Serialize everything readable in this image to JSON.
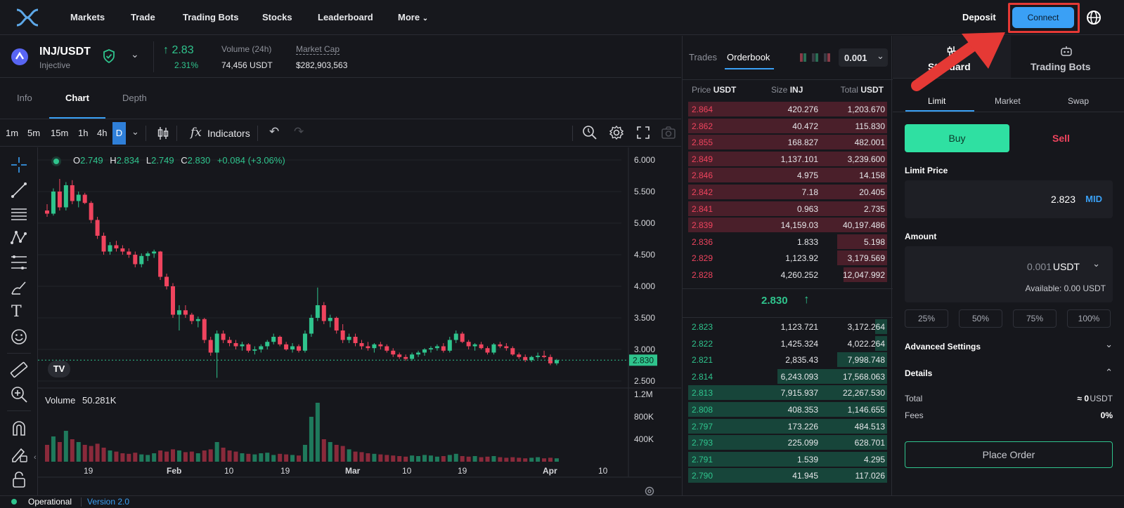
{
  "nav": {
    "items": [
      "Markets",
      "Trade",
      "Trading Bots",
      "Stocks",
      "Leaderboard",
      "More"
    ],
    "deposit": "Deposit",
    "connect": "Connect"
  },
  "pair": {
    "symbol": "INJ/USDT",
    "name": "Injective",
    "price": "↑ 2.83",
    "change": "2.31%",
    "volume_label": "Volume (24h)",
    "volume_value": "74,456 USDT",
    "mcap_label": "Market Cap",
    "mcap_value": "$282,903,563"
  },
  "chart_tabs": [
    "Info",
    "Chart",
    "Depth"
  ],
  "toolbar": {
    "intervals": [
      "1m",
      "5m",
      "15m",
      "1h",
      "4h",
      "D"
    ],
    "indicators": "Indicators"
  },
  "ohlc": {
    "o_label": "O",
    "o": "2.749",
    "h_label": "H",
    "h": "2.834",
    "l_label": "L",
    "l": "2.749",
    "c_label": "C",
    "c": "2.830",
    "change": "+0.084 (+3.06%)"
  },
  "volume_label": "Volume",
  "volume_value": "50.281K",
  "price_axis": [
    "6.000",
    "5.500",
    "5.000",
    "4.500",
    "4.000",
    "3.500",
    "3.000",
    "2.500"
  ],
  "current_price_tag": "2.830",
  "volume_axis": [
    "1.2M",
    "800K",
    "400K"
  ],
  "time_axis": [
    "19",
    "Feb",
    "10",
    "19",
    "Mar",
    "10",
    "19",
    "Apr",
    "10"
  ],
  "chart_data": {
    "type": "candlestick",
    "ylim": [
      2.5,
      6.0
    ],
    "candles": [
      [
        5.2,
        5.3,
        5.1,
        5.15
      ],
      [
        5.15,
        5.55,
        5.12,
        5.5
      ],
      [
        5.5,
        5.7,
        5.2,
        5.25
      ],
      [
        5.25,
        5.65,
        5.2,
        5.6
      ],
      [
        5.6,
        5.68,
        5.3,
        5.35
      ],
      [
        5.35,
        5.5,
        5.25,
        5.45
      ],
      [
        5.45,
        5.48,
        5.3,
        5.32
      ],
      [
        5.32,
        5.35,
        5.0,
        5.05
      ],
      [
        5.05,
        5.1,
        4.75,
        4.8
      ],
      [
        4.8,
        4.85,
        4.5,
        4.55
      ],
      [
        4.55,
        4.7,
        4.5,
        4.65
      ],
      [
        4.65,
        4.72,
        4.55,
        4.6
      ],
      [
        4.6,
        4.65,
        4.5,
        4.55
      ],
      [
        4.55,
        4.6,
        4.45,
        4.5
      ],
      [
        4.5,
        4.55,
        4.3,
        4.35
      ],
      [
        4.35,
        4.52,
        4.3,
        4.48
      ],
      [
        4.48,
        4.55,
        4.4,
        4.52
      ],
      [
        4.52,
        4.58,
        4.45,
        4.55
      ],
      [
        4.55,
        4.56,
        4.1,
        4.15
      ],
      [
        4.15,
        4.2,
        3.95,
        4.0
      ],
      [
        4.0,
        4.05,
        3.5,
        3.55
      ],
      [
        3.55,
        3.7,
        3.3,
        3.62
      ],
      [
        3.62,
        3.7,
        3.5,
        3.55
      ],
      [
        3.55,
        3.58,
        3.4,
        3.45
      ],
      [
        3.45,
        3.52,
        3.35,
        3.48
      ],
      [
        3.48,
        3.5,
        3.1,
        3.15
      ],
      [
        3.15,
        3.2,
        2.9,
        2.95
      ],
      [
        2.95,
        3.3,
        2.55,
        3.25
      ],
      [
        3.25,
        3.3,
        3.1,
        3.15
      ],
      [
        3.15,
        3.2,
        3.05,
        3.1
      ],
      [
        3.1,
        3.15,
        3.0,
        3.05
      ],
      [
        3.05,
        3.12,
        2.98,
        3.08
      ],
      [
        3.08,
        3.1,
        2.95,
        2.98
      ],
      [
        2.98,
        3.05,
        2.92,
        3.0
      ],
      [
        3.0,
        3.08,
        2.95,
        3.05
      ],
      [
        3.05,
        3.15,
        3.0,
        3.12
      ],
      [
        3.12,
        3.25,
        3.08,
        3.2
      ],
      [
        3.2,
        3.22,
        3.05,
        3.08
      ],
      [
        3.08,
        3.12,
        2.98,
        3.0
      ],
      [
        3.0,
        3.1,
        2.95,
        3.05
      ],
      [
        3.05,
        3.08,
        2.95,
        2.98
      ],
      [
        2.98,
        3.3,
        2.95,
        3.25
      ],
      [
        3.25,
        3.55,
        3.2,
        3.5
      ],
      [
        3.5,
        3.98,
        3.45,
        3.7
      ],
      [
        3.7,
        3.75,
        3.4,
        3.45
      ],
      [
        3.45,
        3.55,
        3.35,
        3.5
      ],
      [
        3.5,
        3.52,
        3.25,
        3.3
      ],
      [
        3.3,
        3.4,
        3.1,
        3.15
      ],
      [
        3.15,
        3.25,
        3.1,
        3.2
      ],
      [
        3.2,
        3.25,
        3.05,
        3.1
      ],
      [
        3.1,
        3.15,
        3.0,
        3.05
      ],
      [
        3.05,
        3.12,
        2.98,
        3.02
      ],
      [
        3.02,
        3.1,
        2.95,
        3.08
      ],
      [
        3.08,
        3.12,
        3.0,
        3.05
      ],
      [
        3.05,
        3.08,
        2.95,
        2.98
      ],
      [
        2.98,
        3.02,
        2.88,
        2.92
      ],
      [
        2.92,
        2.95,
        2.85,
        2.88
      ],
      [
        2.88,
        2.92,
        2.82,
        2.85
      ],
      [
        2.85,
        2.95,
        2.82,
        2.92
      ],
      [
        2.92,
        2.98,
        2.88,
        2.95
      ],
      [
        2.95,
        3.02,
        2.9,
        3.0
      ],
      [
        3.0,
        3.05,
        2.95,
        3.02
      ],
      [
        3.02,
        3.08,
        2.98,
        3.05
      ],
      [
        3.05,
        3.1,
        2.95,
        2.98
      ],
      [
        2.98,
        3.2,
        2.95,
        3.15
      ],
      [
        3.15,
        3.3,
        3.1,
        3.25
      ],
      [
        3.25,
        3.28,
        3.1,
        3.12
      ],
      [
        3.12,
        3.15,
        3.0,
        3.05
      ],
      [
        3.05,
        3.1,
        2.98,
        3.08
      ],
      [
        3.08,
        3.12,
        3.0,
        3.02
      ],
      [
        3.02,
        3.05,
        2.92,
        2.95
      ],
      [
        2.95,
        3.1,
        2.92,
        3.08
      ],
      [
        3.08,
        3.12,
        3.02,
        3.05
      ],
      [
        3.05,
        3.1,
        2.98,
        3.02
      ],
      [
        3.02,
        3.05,
        2.9,
        2.92
      ],
      [
        2.92,
        2.95,
        2.85,
        2.88
      ],
      [
        2.88,
        2.92,
        2.8,
        2.83
      ],
      [
        2.83,
        2.9,
        2.8,
        2.88
      ],
      [
        2.88,
        2.95,
        2.85,
        2.9
      ],
      [
        2.9,
        2.98,
        2.86,
        2.88
      ],
      [
        2.88,
        2.92,
        2.75,
        2.78
      ],
      [
        2.78,
        2.85,
        2.75,
        2.83
      ]
    ],
    "volumes": [
      0.3,
      0.45,
      0.35,
      0.55,
      0.4,
      0.35,
      0.3,
      0.28,
      0.32,
      0.25,
      0.2,
      0.18,
      0.15,
      0.14,
      0.16,
      0.13,
      0.12,
      0.15,
      0.2,
      0.18,
      0.22,
      0.2,
      0.17,
      0.18,
      0.15,
      0.2,
      0.22,
      0.35,
      0.25,
      0.2,
      0.18,
      0.15,
      0.14,
      0.13,
      0.15,
      0.16,
      0.12,
      0.14,
      0.13,
      0.12,
      0.11,
      0.3,
      0.8,
      1.05,
      0.4,
      0.35,
      0.3,
      0.28,
      0.22,
      0.18,
      0.17,
      0.15,
      0.14,
      0.13,
      0.12,
      0.11,
      0.1,
      0.09,
      0.11,
      0.1,
      0.12,
      0.11,
      0.09,
      0.1,
      0.12,
      0.14,
      0.1,
      0.09,
      0.1,
      0.08,
      0.09,
      0.1,
      0.08,
      0.07,
      0.08,
      0.07,
      0.06,
      0.07,
      0.08,
      0.06,
      0.07,
      0.06
    ]
  },
  "orderbook": {
    "tab_trades": "Trades",
    "tab_orderbook": "Orderbook",
    "precision": "0.001",
    "h_price": "Price",
    "h_price_unit": "USDT",
    "h_size": "Size",
    "h_size_unit": "INJ",
    "h_total": "Total",
    "h_total_unit": "USDT",
    "asks": [
      {
        "price": "2.864",
        "size": "420.276",
        "total": "1,203.670",
        "depth": 1.0
      },
      {
        "price": "2.862",
        "size": "40.472",
        "total": "115.830",
        "depth": 1.0
      },
      {
        "price": "2.855",
        "size": "168.827",
        "total": "482.001",
        "depth": 1.0
      },
      {
        "price": "2.849",
        "size": "1,137.101",
        "total": "3,239.600",
        "depth": 1.0
      },
      {
        "price": "2.846",
        "size": "4.975",
        "total": "14.158",
        "depth": 1.0
      },
      {
        "price": "2.842",
        "size": "7.18",
        "total": "20.405",
        "depth": 1.0
      },
      {
        "price": "2.841",
        "size": "0.963",
        "total": "2.735",
        "depth": 1.0
      },
      {
        "price": "2.839",
        "size": "14,159.03",
        "total": "40,197.486",
        "depth": 1.0
      },
      {
        "price": "2.836",
        "size": "1.833",
        "total": "5.198",
        "depth": 0.25
      },
      {
        "price": "2.829",
        "size": "1,123.92",
        "total": "3,179.569",
        "depth": 0.25
      },
      {
        "price": "2.828",
        "size": "4,260.252",
        "total": "12,047.992",
        "depth": 0.22
      }
    ],
    "mid": "2.830",
    "bids": [
      {
        "price": "2.823",
        "size": "1,123.721",
        "total": "3,172.264",
        "depth": 0.06
      },
      {
        "price": "2.822",
        "size": "1,425.324",
        "total": "4,022.264",
        "depth": 0.06
      },
      {
        "price": "2.821",
        "size": "2,835.43",
        "total": "7,998.748",
        "depth": 0.25
      },
      {
        "price": "2.814",
        "size": "6,243.093",
        "total": "17,568.063",
        "depth": 0.55
      },
      {
        "price": "2.813",
        "size": "7,915.937",
        "total": "22,267.530",
        "depth": 1.0
      },
      {
        "price": "2.808",
        "size": "408.353",
        "total": "1,146.655",
        "depth": 1.0
      },
      {
        "price": "2.797",
        "size": "173.226",
        "total": "484.513",
        "depth": 1.0
      },
      {
        "price": "2.793",
        "size": "225.099",
        "total": "628.701",
        "depth": 1.0
      },
      {
        "price": "2.791",
        "size": "1.539",
        "total": "4.295",
        "depth": 1.0
      },
      {
        "price": "2.790",
        "size": "41.945",
        "total": "117.026",
        "depth": 1.0
      }
    ]
  },
  "trade": {
    "tab_standard": "Standard",
    "tab_bots": "Trading Bots",
    "order_types": [
      "Limit",
      "Market",
      "Swap"
    ],
    "buy": "Buy",
    "sell": "Sell",
    "limit_price_label": "Limit Price",
    "limit_price_value": "2.823",
    "mid": "MID",
    "amount_label": "Amount",
    "amount_value": "0.001",
    "amount_unit": "USDT",
    "available": "Available: 0.00 USDT",
    "percents": [
      "25%",
      "50%",
      "75%",
      "100%"
    ],
    "advanced": "Advanced Settings",
    "details": "Details",
    "total_label": "Total",
    "total_value": "≈  0",
    "total_unit": "USDT",
    "fees_label": "Fees",
    "fees_value": "0%",
    "place_order": "Place Order"
  },
  "status": {
    "operational": "Operational",
    "version": "Version 2.0"
  },
  "colors": {
    "up": "#2fc48d",
    "down": "#f0445e",
    "accent": "#3aa0f5",
    "annotation": "#e53935"
  }
}
